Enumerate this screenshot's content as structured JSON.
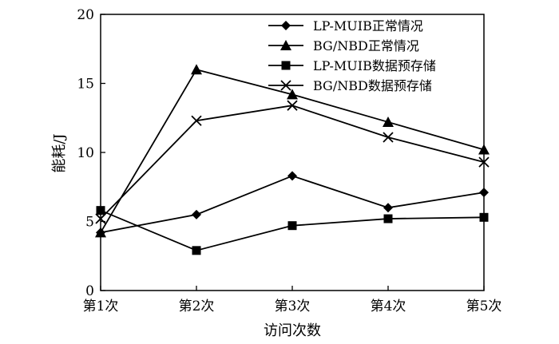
{
  "chart_data": {
    "type": "line",
    "categories": [
      "第1次",
      "第2次",
      "第3次",
      "第4次",
      "第5次"
    ],
    "xlabel": "访问次数",
    "ylabel": "能耗/J",
    "ylim": [
      0,
      20
    ],
    "yticks": [
      0,
      5,
      10,
      15,
      20
    ],
    "grid": false,
    "legend_position": "top-right",
    "series": [
      {
        "name": "LP-MUIB正常情况",
        "marker": "diamond",
        "values": [
          4.2,
          5.5,
          8.3,
          6.0,
          7.1
        ]
      },
      {
        "name": "BG/NBD正常情况",
        "marker": "triangle",
        "values": [
          4.2,
          16.0,
          14.2,
          12.2,
          10.2
        ]
      },
      {
        "name": "LP-MUIB数据预存储",
        "marker": "square",
        "values": [
          5.8,
          2.9,
          4.7,
          5.2,
          5.3
        ]
      },
      {
        "name": "BG/NBD数据预存储",
        "marker": "x",
        "values": [
          5.2,
          12.3,
          13.4,
          11.1,
          9.3
        ]
      }
    ]
  }
}
